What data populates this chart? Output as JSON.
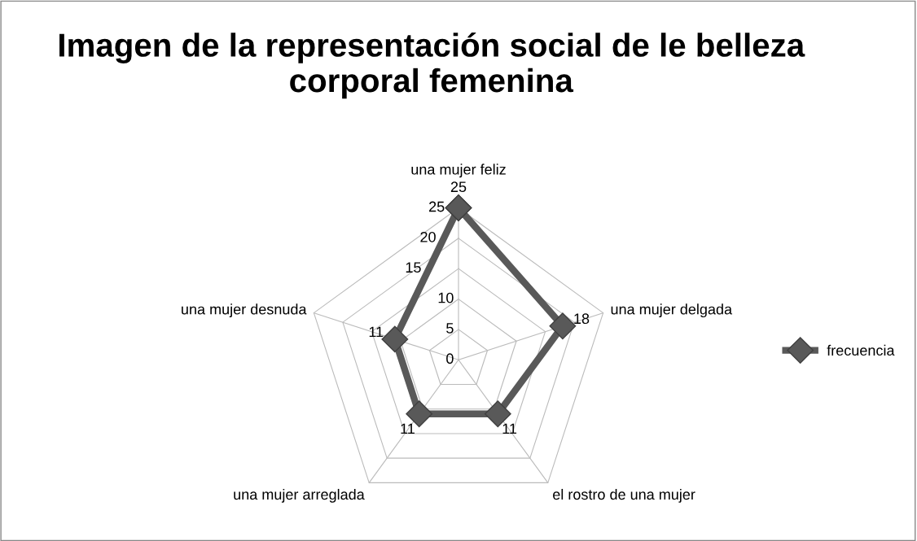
{
  "chart_data": {
    "type": "radar",
    "title": "Imagen de la representación social de le belleza corporal femenina",
    "categories": [
      "una mujer feliz",
      "una mujer delgada",
      "el rostro de una mujer",
      "una mujer arreglada",
      "una mujer desnuda"
    ],
    "series": [
      {
        "name": "frecuencia",
        "color": "#595959",
        "values": [
          25,
          18,
          11,
          11,
          11
        ]
      }
    ],
    "ylim": [
      0,
      25
    ],
    "yticks": [
      0,
      5,
      10,
      15,
      20,
      25
    ],
    "grid": true,
    "legend": "right",
    "marker": "diamond",
    "line_style": "solid",
    "data_labels": true
  }
}
